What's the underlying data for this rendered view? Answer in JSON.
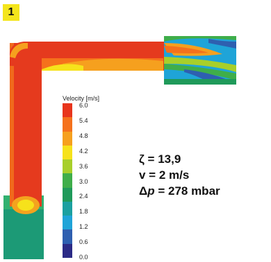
{
  "figure_number": "1",
  "legend": {
    "title": "Velocity [m/s]",
    "levels": [
      {
        "label": "6.0",
        "color": "#e8351c"
      },
      {
        "label": "5.4",
        "color": "#f5711c"
      },
      {
        "label": "4.8",
        "color": "#f6a01e"
      },
      {
        "label": "4.2",
        "color": "#f6e21b"
      },
      {
        "label": "3.6",
        "color": "#a8cf2a"
      },
      {
        "label": "3.0",
        "color": "#3fae4a"
      },
      {
        "label": "2.4",
        "color": "#1f9a5a"
      },
      {
        "label": "1.8",
        "color": "#1ba0a0"
      },
      {
        "label": "1.2",
        "color": "#1fa4d8"
      },
      {
        "label": "0.6",
        "color": "#2e5fb0"
      },
      {
        "label": "0.0",
        "color": "#2b2a86"
      }
    ]
  },
  "results": {
    "zeta": "ζ = 13,9",
    "velocity": "v = 2 m/s",
    "pressure_symbol": "Δ",
    "pressure_var": "p",
    "pressure_value": " = 278 mbar"
  }
}
